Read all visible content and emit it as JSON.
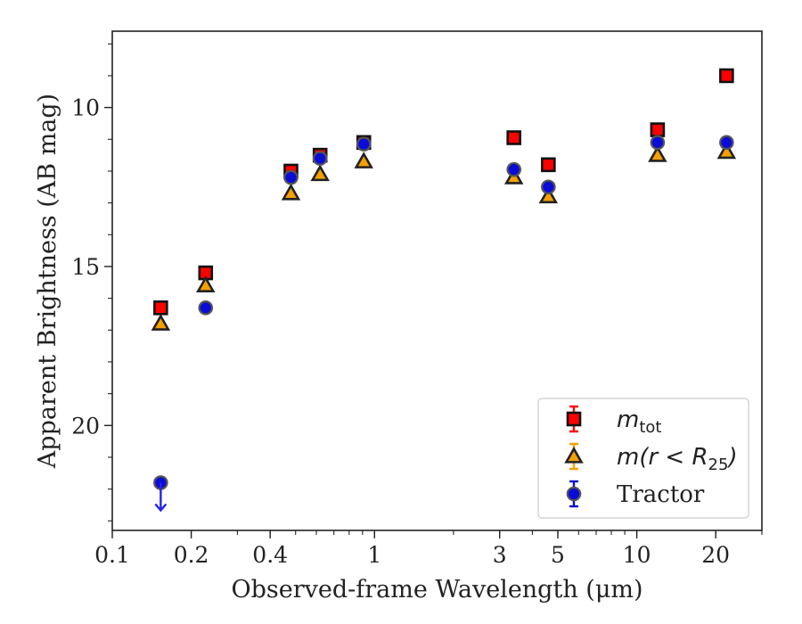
{
  "chart_data": {
    "type": "scatter",
    "xlabel": "Observed-frame Wavelength (μm)",
    "ylabel": "Apparent Brightness (AB mag)",
    "xscale": "log",
    "xlim": [
      0.1,
      30
    ],
    "ylim": [
      23.3,
      7.6
    ],
    "y_inverted": true,
    "x_ticks": [
      {
        "value": 0.1,
        "label": "0.1"
      },
      {
        "value": 0.2,
        "label": "0.2"
      },
      {
        "value": 0.4,
        "label": "0.4"
      },
      {
        "value": 1,
        "label": "1"
      },
      {
        "value": 3,
        "label": "3"
      },
      {
        "value": 5,
        "label": "5"
      },
      {
        "value": 10,
        "label": "10"
      },
      {
        "value": 20,
        "label": "20"
      }
    ],
    "y_ticks": [
      {
        "value": 10,
        "label": "10"
      },
      {
        "value": 15,
        "label": "15"
      },
      {
        "value": 20,
        "label": "20"
      }
    ],
    "grid": false,
    "legend_position": "bottom-right",
    "series": [
      {
        "name": "m_tot",
        "legend_main": "m",
        "legend_sub": "tot",
        "marker": "square",
        "color": "#ff0000",
        "edge": "#111111",
        "x": [
          0.153,
          0.227,
          0.48,
          0.62,
          0.91,
          3.4,
          4.6,
          12.0,
          22.0
        ],
        "y": [
          16.3,
          15.2,
          12.0,
          11.5,
          11.1,
          10.95,
          11.8,
          10.7,
          9.0
        ]
      },
      {
        "name": "m(r < R25)",
        "legend_main": "m(r < R",
        "legend_sub": "25",
        "legend_tail": ")",
        "marker": "triangle",
        "color": "#f5a000",
        "edge": "#222222",
        "x": [
          0.153,
          0.227,
          0.48,
          0.62,
          0.91,
          3.4,
          4.6,
          12.0,
          22.0
        ],
        "y": [
          16.8,
          15.6,
          12.7,
          12.1,
          11.7,
          12.2,
          12.8,
          11.5,
          11.4
        ]
      },
      {
        "name": "Tractor",
        "marker": "circle",
        "color": "#0b0bd8",
        "edge": "#555555",
        "x": [
          0.153,
          0.227,
          0.48,
          0.62,
          0.91,
          3.4,
          4.6,
          12.0,
          22.0
        ],
        "y": [
          21.8,
          16.3,
          12.2,
          11.6,
          11.15,
          11.95,
          12.5,
          11.1,
          11.1
        ],
        "upper_limit_x": [
          0.153
        ]
      }
    ]
  }
}
